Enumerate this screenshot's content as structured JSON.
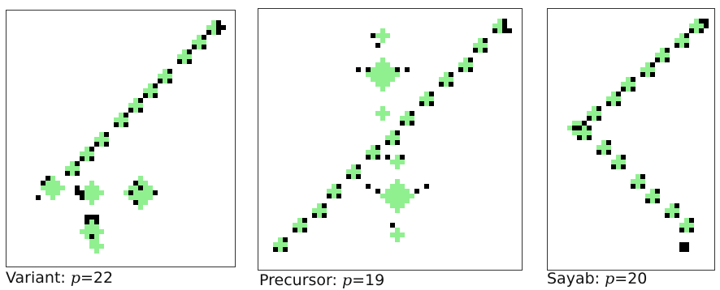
{
  "colors": {
    "cell_on": "#000000",
    "trail": "#90f090",
    "frame": "#333333",
    "background": "#ffffff"
  },
  "panels": [
    {
      "id": "variant",
      "caption_name": "Variant:",
      "caption_param": "p",
      "caption_eq": "=22"
    },
    {
      "id": "precursor",
      "caption_name": "Precursor:",
      "caption_param": "p",
      "caption_eq": "=19"
    },
    {
      "id": "sayab",
      "caption_name": "Sayab:",
      "caption_param": "p",
      "caption_eq": "=20"
    }
  ]
}
